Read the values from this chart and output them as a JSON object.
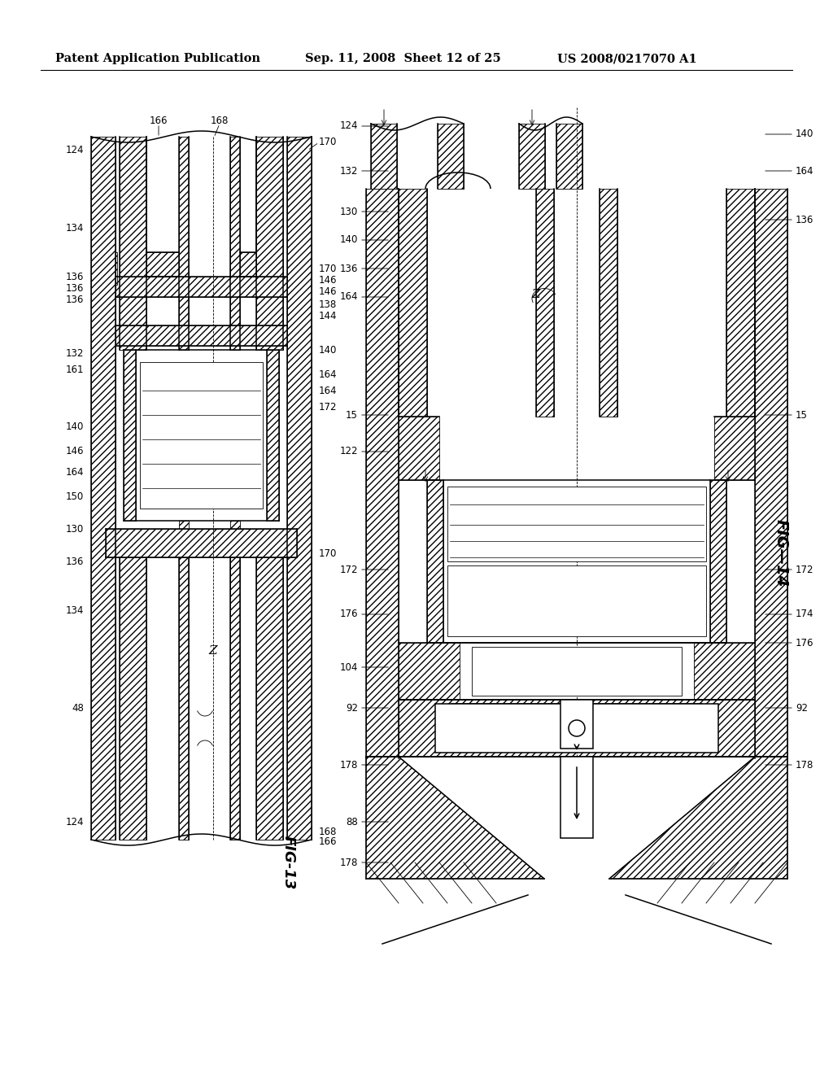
{
  "bg_color": "#ffffff",
  "header_text_left": "Patent Application Publication",
  "header_text_mid": "Sep. 11, 2008  Sheet 12 of 25",
  "header_text_right": "US 2008/0217070 A1",
  "fig13_label": "FIG-13",
  "fig14_label": "FIG—14",
  "line_color": "#000000",
  "lw_thin": 0.6,
  "lw_med": 1.1,
  "lw_thick": 1.6,
  "font_size_header": 10.5,
  "font_size_label": 13,
  "font_size_ref": 8.5
}
